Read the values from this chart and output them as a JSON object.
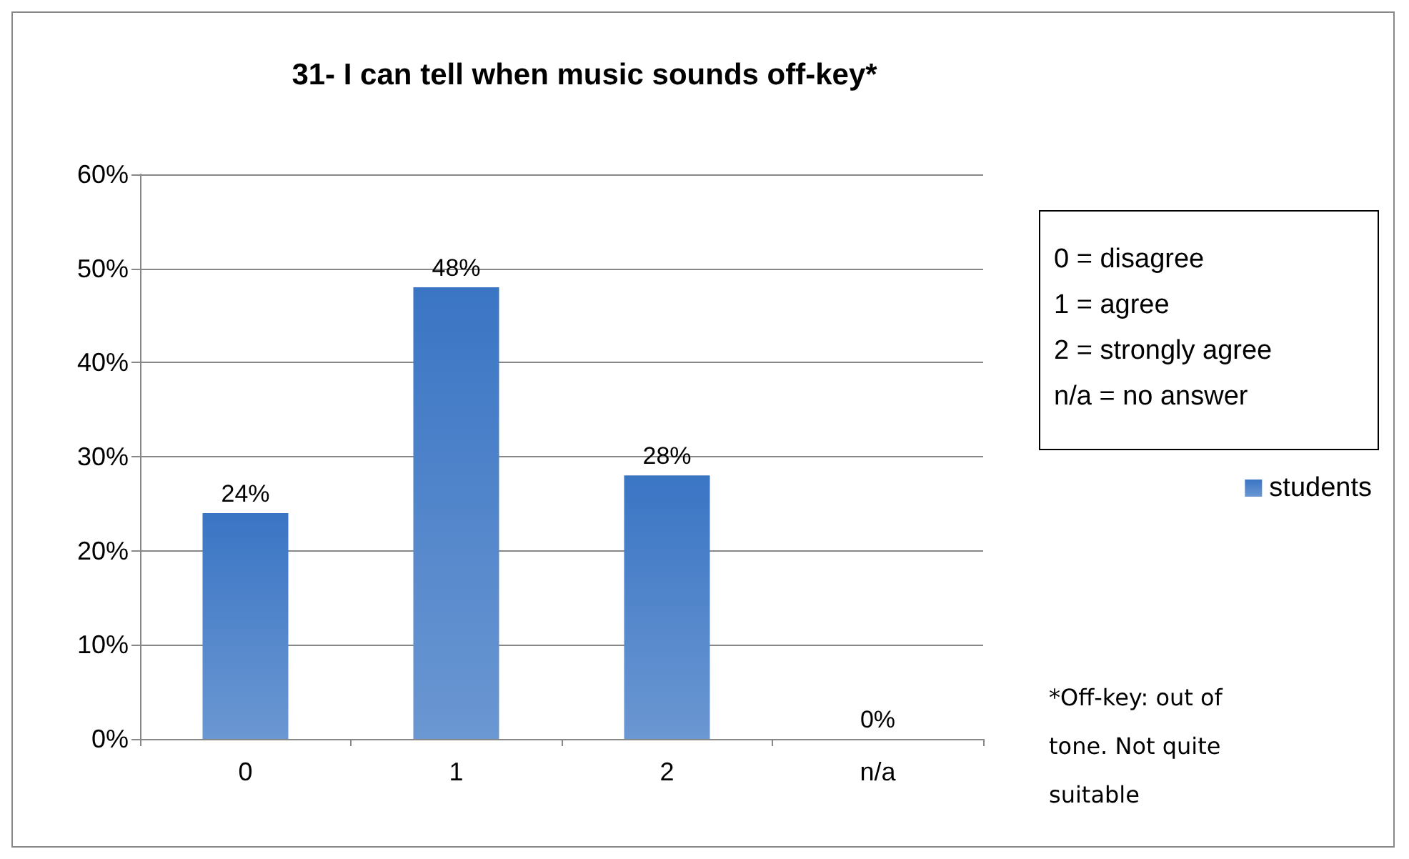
{
  "chart_data": {
    "type": "bar",
    "title": "31- I can tell when music sounds off-key*",
    "categories": [
      "0",
      "1",
      "2",
      "n/a"
    ],
    "series": [
      {
        "name": "students",
        "color": "#3a75c4",
        "values": [
          24,
          48,
          28,
          0
        ],
        "value_labels": [
          "24%",
          "48%",
          "28%",
          "0%"
        ]
      }
    ],
    "ylim": [
      0,
      60
    ],
    "yticks": [
      {
        "value": 0,
        "label": "0%"
      },
      {
        "value": 10,
        "label": "10%"
      },
      {
        "value": 20,
        "label": "20%"
      },
      {
        "value": 30,
        "label": "30%"
      },
      {
        "value": 40,
        "label": "40%"
      },
      {
        "value": 50,
        "label": "50%"
      },
      {
        "value": 60,
        "label": "60%"
      }
    ],
    "grid": "y",
    "legend": "right",
    "annotations": [
      "0 = disagree",
      "1 = agree",
      "2 = strongly agree",
      "n/a = no answer",
      "*Off-key: out of\ntone. Not quite\nsuitable"
    ]
  }
}
